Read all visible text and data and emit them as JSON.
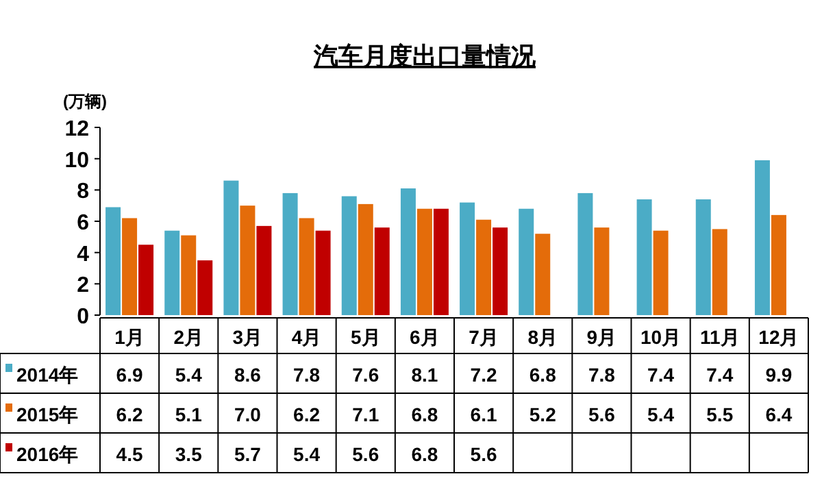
{
  "chart_data": {
    "type": "bar",
    "title": "汽车月度出口量情况",
    "ylabel": "(万辆)",
    "categories": [
      "1月",
      "2月",
      "3月",
      "4月",
      "5月",
      "6月",
      "7月",
      "8月",
      "9月",
      "10月",
      "11月",
      "12月"
    ],
    "series": [
      {
        "name": "2014年",
        "color": "#4bacc6",
        "values": [
          6.9,
          5.4,
          8.6,
          7.8,
          7.6,
          8.1,
          7.2,
          6.8,
          7.8,
          7.4,
          7.4,
          9.9
        ],
        "value_labels": [
          "6.9",
          "5.4",
          "8.6",
          "7.8",
          "7.6",
          "8.1",
          "7.2",
          "6.8",
          "7.8",
          "7.4",
          "7.4",
          "9.9"
        ]
      },
      {
        "name": "2015年",
        "color": "#e46c0a",
        "values": [
          6.2,
          5.1,
          7.0,
          6.2,
          7.1,
          6.8,
          6.1,
          5.2,
          5.6,
          5.4,
          5.5,
          6.4
        ],
        "value_labels": [
          "6.2",
          "5.1",
          "7.0",
          "6.2",
          "7.1",
          "6.8",
          "6.1",
          "5.2",
          "5.6",
          "5.4",
          "5.5",
          "6.4"
        ]
      },
      {
        "name": "2016年",
        "color": "#c00000",
        "values": [
          4.5,
          3.5,
          5.7,
          5.4,
          5.6,
          6.8,
          5.6,
          null,
          null,
          null,
          null,
          null
        ],
        "value_labels": [
          "4.5",
          "3.5",
          "5.7",
          "5.4",
          "5.6",
          "6.8",
          "5.6",
          null,
          null,
          null,
          null,
          null
        ]
      }
    ],
    "ylim": [
      0,
      12
    ],
    "yticks": [
      0,
      2,
      4,
      6,
      8,
      10,
      12
    ],
    "legend": "bottom",
    "grid": false
  }
}
